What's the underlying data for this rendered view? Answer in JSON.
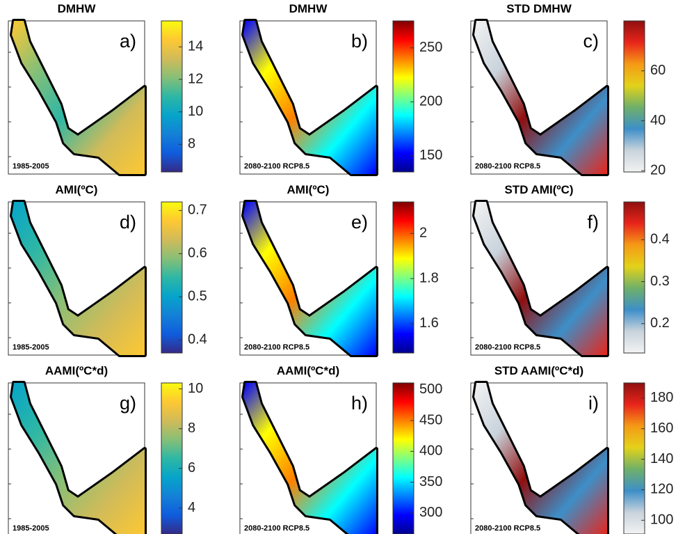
{
  "panels": [
    {
      "title": "DMHW",
      "label": "a)",
      "period": "1985-2005",
      "colorbar": {
        "colors": [
          "#352a87",
          "#0f5cdd",
          "#1481d6",
          "#06a4ca",
          "#2eb7a4",
          "#87bf77",
          "#d1bb59",
          "#fec832",
          "#f9fb0e"
        ],
        "lim": [
          6.3,
          15.6
        ],
        "ticks": [
          8,
          10,
          12,
          14
        ]
      }
    },
    {
      "title": "DMHW",
      "label": "b)",
      "period": "2080-2100 RCP8.5",
      "colorbar": {
        "colors": [
          "#00008f",
          "#0000ff",
          "#0080ff",
          "#00ffff",
          "#80ff80",
          "#ffff00",
          "#ff8000",
          "#ff0000",
          "#800000"
        ],
        "lim": [
          135,
          275
        ],
        "ticks": [
          150,
          200,
          250
        ]
      }
    },
    {
      "title": "STD DMHW",
      "label": "c)",
      "period": "2080-2100 RCP8.5",
      "colorbar": {
        "colors": [
          "#f2f2f2",
          "#c9d3dc",
          "#3d8fc8",
          "#6fb06a",
          "#e3d21a",
          "#f59a16",
          "#e8251a",
          "#8f0f0f"
        ],
        "lim": [
          19.5,
          80
        ],
        "ticks": [
          20,
          40,
          60
        ]
      }
    },
    {
      "title": "AMI(ºC)",
      "label": "d)",
      "period": "1985-2005",
      "colorbar": {
        "colors": [
          "#352a87",
          "#0f5cdd",
          "#1481d6",
          "#06a4ca",
          "#2eb7a4",
          "#87bf77",
          "#d1bb59",
          "#fec832",
          "#f9fb0e"
        ],
        "lim": [
          0.37,
          0.72
        ],
        "ticks": [
          0.4,
          0.5,
          0.6,
          0.7
        ]
      }
    },
    {
      "title": "AMI(ºC)",
      "label": "e)",
      "period": "2080-2100 RCP8.5",
      "colorbar": {
        "colors": [
          "#00008f",
          "#0000ff",
          "#0080ff",
          "#00ffff",
          "#80ff80",
          "#ffff00",
          "#ff8000",
          "#ff0000",
          "#800000"
        ],
        "lim": [
          1.47,
          2.14
        ],
        "ticks": [
          1.6,
          1.8,
          2
        ]
      }
    },
    {
      "title": "STD AMI(ºC)",
      "label": "f)",
      "period": "2080-2100 RCP8.5",
      "colorbar": {
        "colors": [
          "#f2f2f2",
          "#c9d3dc",
          "#3d8fc8",
          "#6fb06a",
          "#e3d21a",
          "#f59a16",
          "#e8251a",
          "#8f0f0f"
        ],
        "lim": [
          0.13,
          0.49
        ],
        "ticks": [
          0.2,
          0.3,
          0.4
        ]
      }
    },
    {
      "title": "AAMI(ºC*d)",
      "label": "g)",
      "period": "1985-2005",
      "colorbar": {
        "colors": [
          "#352a87",
          "#0f5cdd",
          "#1481d6",
          "#06a4ca",
          "#2eb7a4",
          "#87bf77",
          "#d1bb59",
          "#fec832",
          "#f9fb0e"
        ],
        "lim": [
          2.7,
          10.3
        ],
        "ticks": [
          4,
          6,
          8,
          10
        ]
      }
    },
    {
      "title": "AAMI(ºC*d)",
      "label": "h)",
      "period": "2080-2100 RCP8.5",
      "colorbar": {
        "colors": [
          "#00008f",
          "#0000ff",
          "#0080ff",
          "#00ffff",
          "#80ff80",
          "#ffff00",
          "#ff8000",
          "#ff0000",
          "#800000"
        ],
        "lim": [
          266,
          511
        ],
        "ticks": [
          300,
          350,
          400,
          450,
          500
        ]
      }
    },
    {
      "title": "STD AAMI(ºC*d)",
      "label": "i)",
      "period": "2080-2100 RCP8.5",
      "colorbar": {
        "colors": [
          "#f2f2f2",
          "#c9d3dc",
          "#3d8fc8",
          "#6fb06a",
          "#e3d21a",
          "#f59a16",
          "#e8251a",
          "#8f0f0f"
        ],
        "lim": [
          91,
          190
        ],
        "ticks": [
          100,
          120,
          140,
          160,
          180
        ]
      }
    }
  ]
}
